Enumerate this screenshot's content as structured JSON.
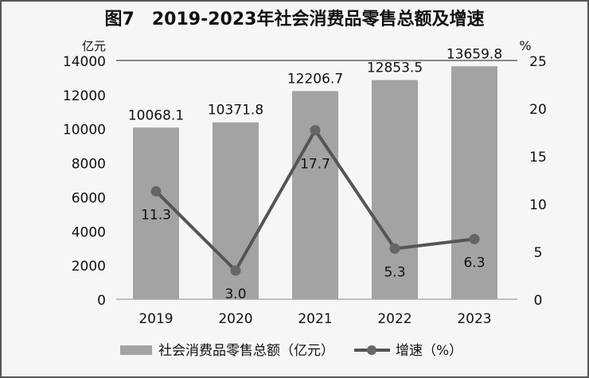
{
  "chart_data": {
    "type": "bar+line",
    "title": "图7　2019-2023年社会消费品零售总额及增速",
    "categories": [
      "2019",
      "2020",
      "2021",
      "2022",
      "2023"
    ],
    "series": [
      {
        "name": "社会消费品零售总额（亿元）",
        "type": "bar",
        "axis": "left",
        "values": [
          10068.1,
          10371.8,
          12206.7,
          12853.5,
          13659.8
        ],
        "labels": [
          "10068.1",
          "10371.8",
          "12206.7",
          "12853.5",
          "13659.8"
        ]
      },
      {
        "name": "增速（%）",
        "type": "line",
        "axis": "right",
        "values": [
          11.3,
          3.0,
          17.7,
          5.3,
          6.3
        ],
        "labels": [
          "11.3",
          "3.0",
          "17.7",
          "5.3",
          "6.3"
        ]
      }
    ],
    "ylabel": "亿元",
    "y2label": "%",
    "ylim": [
      0,
      14000
    ],
    "y2lim": [
      0,
      25
    ],
    "yticks": [
      "0",
      "2000",
      "4000",
      "6000",
      "8000",
      "10000",
      "12000",
      "14000"
    ],
    "y2ticks": [
      "0",
      "5",
      "10",
      "15",
      "20",
      "25"
    ],
    "legend": "bottom",
    "colors": {
      "bar": "#a3a3a3",
      "line": "#555555",
      "marker": "#666666"
    }
  }
}
